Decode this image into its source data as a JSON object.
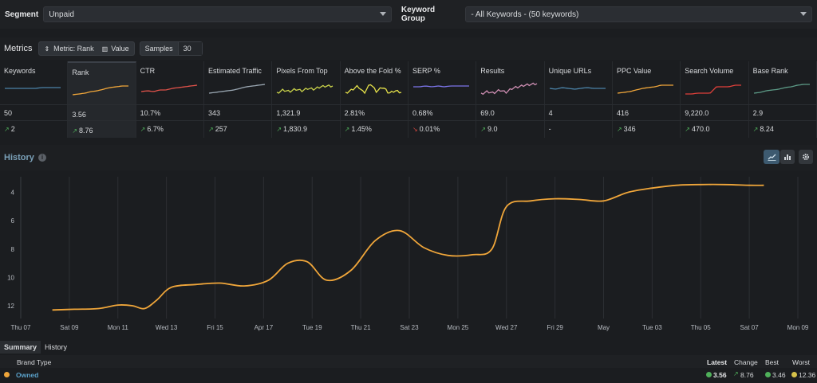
{
  "topbar": {
    "segment_label": "Segment",
    "segment_value": "Unpaid",
    "kwgroup_label": "Keyword Group",
    "kwgroup_value": "- All Keywords - (50 keywords)"
  },
  "metrics_bar": {
    "title": "Metrics",
    "metric_pill": "Metric: Rank",
    "value_pill": "Value",
    "samples_label": "Samples",
    "samples_value": "30"
  },
  "metrics": [
    {
      "name": "Keywords",
      "value": "50",
      "change": "2",
      "dir": "up",
      "color": "#4b83a8"
    },
    {
      "name": "Rank",
      "value": "3.56",
      "change": "8.76",
      "dir": "up",
      "color": "#f0a63a"
    },
    {
      "name": "CTR",
      "value": "10.7%",
      "change": "6.7%",
      "dir": "up",
      "color": "#e0524a"
    },
    {
      "name": "Estimated Traffic",
      "value": "343",
      "change": "257",
      "dir": "up",
      "color": "#9aa7b2"
    },
    {
      "name": "Pixels From Top",
      "value": "1,321.9",
      "change": "1,830.9",
      "dir": "up",
      "color": "#c9d24a"
    },
    {
      "name": "Above the Fold %",
      "value": "2.81%",
      "change": "1.45%",
      "dir": "up",
      "color": "#e6e24a"
    },
    {
      "name": "SERP %",
      "value": "0.68%",
      "change": "0.01%",
      "dir": "down",
      "color": "#7b74e8"
    },
    {
      "name": "Results",
      "value": "69.0",
      "change": "9.0",
      "dir": "up",
      "color": "#d08fb4"
    },
    {
      "name": "Unique URLs",
      "value": "4",
      "change": "-",
      "dir": "none",
      "color": "#4b83a8"
    },
    {
      "name": "PPC Value",
      "value": "416",
      "change": "346",
      "dir": "up",
      "color": "#f0a63a"
    },
    {
      "name": "Search Volume",
      "value": "9,220.0",
      "change": "470.0",
      "dir": "up",
      "color": "#e0403a"
    },
    {
      "name": "Base Rank",
      "value": "2.9",
      "change": "8.24",
      "dir": "up",
      "color": "#5c9a86"
    }
  ],
  "history": {
    "title": "History",
    "info_icon": "info-icon",
    "line_btn": "line-chart-icon",
    "bar_btn": "bar-chart-icon",
    "settings_btn": "gear-icon"
  },
  "chart_data": {
    "type": "line",
    "x_ticks": [
      "Thu 07",
      "Sat 09",
      "Mon 11",
      "Wed 13",
      "Fri 15",
      "Apr 17",
      "Tue 19",
      "Thu 21",
      "Sat 23",
      "Mon 25",
      "Wed 27",
      "Fri 29",
      "May",
      "Tue 03",
      "Thu 05",
      "Sat 07",
      "Mon 09"
    ],
    "y_ticks": [
      4,
      6,
      8,
      10,
      12
    ],
    "ylim": [
      2.9,
      12.9
    ],
    "y_inverted": true,
    "series": [
      {
        "color": "#f0a63a",
        "points": [
          [
            0.65,
            12.3
          ],
          [
            1.1,
            12.25
          ],
          [
            1.6,
            12.2
          ],
          [
            2.0,
            11.95
          ],
          [
            2.3,
            12.0
          ],
          [
            2.55,
            12.2
          ],
          [
            2.8,
            11.6
          ],
          [
            3.1,
            10.7
          ],
          [
            3.6,
            10.5
          ],
          [
            4.1,
            10.4
          ],
          [
            4.6,
            10.6
          ],
          [
            5.1,
            10.2
          ],
          [
            5.5,
            9.0
          ],
          [
            5.9,
            8.9
          ],
          [
            6.3,
            10.2
          ],
          [
            6.8,
            9.5
          ],
          [
            7.3,
            7.4
          ],
          [
            7.8,
            6.7
          ],
          [
            8.3,
            7.9
          ],
          [
            8.8,
            8.45
          ],
          [
            9.3,
            8.4
          ],
          [
            9.7,
            8.0
          ],
          [
            10.0,
            5.0
          ],
          [
            10.5,
            4.6
          ],
          [
            11.0,
            4.45
          ],
          [
            11.5,
            4.5
          ],
          [
            12.0,
            4.6
          ],
          [
            12.5,
            4.0
          ],
          [
            13.0,
            3.7
          ],
          [
            13.5,
            3.5
          ],
          [
            14.0,
            3.45
          ],
          [
            14.5,
            3.45
          ],
          [
            15.0,
            3.5
          ],
          [
            15.3,
            3.5
          ]
        ]
      }
    ]
  },
  "tabs": [
    "Summary",
    "History"
  ],
  "summary": {
    "col_brand": "Brand Type",
    "col_latest": "Latest",
    "col_change": "Change",
    "col_best": "Best",
    "col_worst": "Worst",
    "row_name": "Owned",
    "row_latest": "3.56",
    "row_change": "8.76",
    "row_best": "3.46",
    "row_worst": "12.36"
  }
}
